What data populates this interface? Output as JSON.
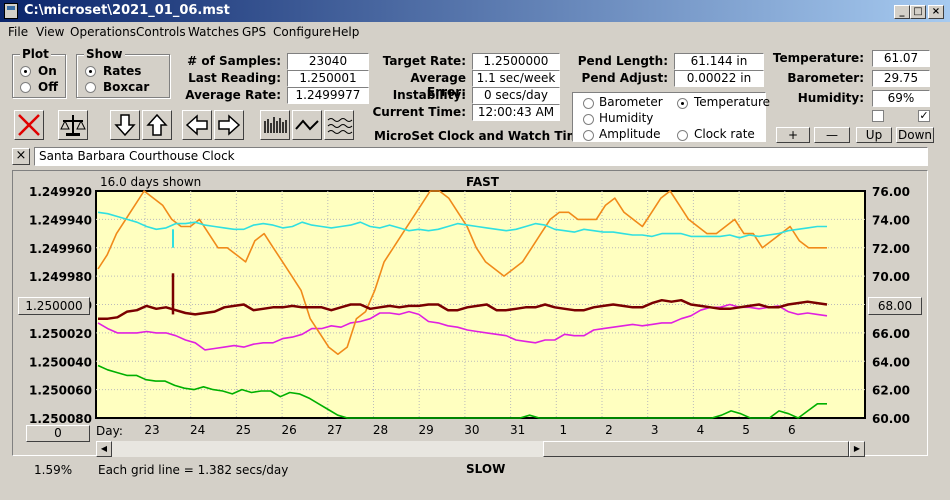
{
  "window": {
    "title": "C:\\microset\\2021_01_06.mst"
  },
  "menu": [
    "File",
    "View",
    "Operations",
    "Controls",
    "Watches",
    "GPS",
    "Configure",
    "Help"
  ],
  "plot_group": {
    "title": "Plot",
    "on": "On",
    "off": "Off"
  },
  "show_group": {
    "title": "Show",
    "rates": "Rates",
    "boxcar": "Boxcar"
  },
  "stats": {
    "samples_label": "# of Samples:",
    "samples": "23040",
    "last_label": "Last Reading:",
    "last": "1.250001",
    "avg_label": "Average Rate:",
    "avg": "1.2499977",
    "target_label": "Target Rate:",
    "target": "1.2500000",
    "error_label": "Average Error:",
    "error": "1.1 sec/week",
    "instab_label": "Instability:",
    "instab": "0 secs/day",
    "time_label": "Current Time:",
    "time": "12:00:43 AM",
    "pendlen_label": "Pend Length:",
    "pendlen": "61.144 in",
    "pendadj_label": "Pend Adjust:",
    "pendadj": "0.00022 in",
    "temp_label": "Temperature:",
    "temp": "61.07",
    "baro_label": "Barometer:",
    "baro": "29.75",
    "hum_label": "Humidity:",
    "hum": "69%"
  },
  "subtitle": "MicroSet Clock and Watch Timer",
  "radios": {
    "barometer": "Barometer",
    "temperature": "Temperature",
    "humidity": "Humidity",
    "amplitude": "Amplitude",
    "clockrate": "Clock rate"
  },
  "colors": {
    "barometer": "#f08a1a",
    "temperature": "#00b000",
    "humidity": "#e020e0",
    "amplitude": "#30e0e0",
    "clockrate": "#7a0000"
  },
  "buttons": {
    "plus": "+",
    "minus": "—",
    "up": "Up",
    "down": "Down",
    "close_x": "×"
  },
  "clock_name": "Santa Barbara Courthouse Clock",
  "graph": {
    "days_shown": "16.0 days shown",
    "fast": "FAST",
    "slow": "SLOW",
    "grid_note": "Each grid line = 1.382 secs/day",
    "left_button": "1.250000",
    "right_button": "68.00",
    "zero_button": "0",
    "day_label": "Day:",
    "percent": "1.59%"
  },
  "chart_data": {
    "type": "line",
    "y_left_ticks": [
      "1.249920",
      "1.249940",
      "1.249960",
      "1.249980",
      "1.250000",
      "1.250020",
      "1.250040",
      "1.250060",
      "1.250080"
    ],
    "y_right_ticks": [
      "76.00",
      "74.00",
      "72.00",
      "70.00",
      "68.00",
      "66.00",
      "64.00",
      "62.00",
      "60.00"
    ],
    "x_ticks": [
      "23",
      "24",
      "25",
      "26",
      "27",
      "28",
      "29",
      "30",
      "31",
      "1",
      "2",
      "3",
      "4",
      "5",
      "6"
    ],
    "ylim_right": [
      60,
      76
    ],
    "series": [
      {
        "name": "Barometer",
        "key": "barometer",
        "values": [
          70.5,
          71.5,
          73,
          74,
          75,
          76,
          75.5,
          75,
          74,
          73.5,
          73.5,
          74,
          73,
          72,
          72,
          71.5,
          71,
          72.5,
          73,
          72,
          71,
          70,
          69,
          67,
          66,
          65,
          64.5,
          65,
          67,
          67.5,
          69,
          71,
          72,
          73,
          74,
          75,
          76,
          76,
          75.5,
          74.5,
          73.5,
          72,
          71,
          70.5,
          70,
          70.5,
          71,
          72,
          73,
          74,
          74.5,
          74.5,
          74,
          74,
          74,
          75,
          75.5,
          74.5,
          74,
          73.5,
          74.5,
          75.5,
          76,
          75,
          74,
          73.5,
          73,
          73,
          73.5,
          74,
          73,
          73,
          72,
          72.5,
          73,
          73.5,
          72.5,
          72,
          72,
          72
        ]
      },
      {
        "name": "Temperature",
        "key": "temperature",
        "values": [
          63.7,
          63.4,
          63.2,
          63,
          63,
          62.7,
          62.6,
          62.6,
          62.3,
          62.1,
          62,
          62.2,
          62,
          61.9,
          61.7,
          62,
          61.8,
          61.9,
          61.9,
          61.5,
          61.8,
          61.7,
          61.4,
          61,
          60.6,
          60.2,
          60,
          60,
          60,
          60,
          60,
          60,
          60,
          60,
          60,
          60,
          60,
          60,
          60,
          60,
          60,
          60,
          60,
          60,
          60,
          60.2,
          60,
          60,
          60,
          60,
          60,
          60,
          60,
          60,
          60,
          60,
          60,
          60,
          60,
          60,
          60,
          60,
          60,
          60,
          60,
          60.2,
          60.5,
          60.3,
          60,
          60,
          60,
          60.5,
          60.3,
          60,
          60.5,
          61,
          61
        ]
      },
      {
        "name": "Humidity",
        "key": "humidity",
        "values": [
          66.7,
          66.3,
          66,
          66,
          66,
          66.1,
          66,
          66,
          65.8,
          65.5,
          65.3,
          64.8,
          64.9,
          65,
          65.1,
          65,
          65.2,
          65.3,
          65.3,
          65.6,
          65.7,
          65.9,
          66.3,
          66.3,
          66.5,
          66.4,
          66.7,
          66.8,
          67,
          67.4,
          67.4,
          67.3,
          67.5,
          67.3,
          66.8,
          66.7,
          66.5,
          66.4,
          66.2,
          66.1,
          66,
          65.9,
          65.8,
          65.5,
          65.4,
          65.3,
          65.5,
          65.5,
          65.9,
          65.8,
          65.8,
          66.2,
          66.3,
          66.4,
          66.5,
          66.6,
          66.5,
          66.6,
          66.7,
          66.7,
          67,
          67.2,
          67.6,
          67.8,
          67.8,
          68,
          67.8,
          67.8,
          67.7,
          67.8,
          67.9,
          67.5,
          67.3,
          67.4,
          67.3,
          67.2
        ]
      },
      {
        "name": "Amplitude",
        "key": "amplitude",
        "values": [
          74.5,
          74.4,
          74.2,
          74,
          73.8,
          73.5,
          73.3,
          73.4,
          73.7,
          73.7,
          73.8,
          73.6,
          73.5,
          73.4,
          73.3,
          73.3,
          73.6,
          73.7,
          73.6,
          73.4,
          73.5,
          73.8,
          73.6,
          73.5,
          73.4,
          73.5,
          73.6,
          73.8,
          73.5,
          73.4,
          73.6,
          73.4,
          73.2,
          73.3,
          73.2,
          73.3,
          73.5,
          73.7,
          73.6,
          73.5,
          73.4,
          73.3,
          73.2,
          73.3,
          73.5,
          73.7,
          73.6,
          73.3,
          73.2,
          73.1,
          73.3,
          73.2,
          73.1,
          73.1,
          73,
          72.9,
          72.9,
          72.8,
          73,
          73,
          73,
          72.8,
          72.8,
          72.8,
          72.8,
          72.9,
          72.7,
          72.9,
          72.8,
          72.9,
          73,
          73.2,
          73.3,
          73.4,
          73.5,
          73.5
        ]
      },
      {
        "name": "Clock rate",
        "key": "clockrate",
        "values": [
          67,
          67,
          67.1,
          67.5,
          67.6,
          67.9,
          67.7,
          67.8,
          67.6,
          67.4,
          67.3,
          67.4,
          67.5,
          67.8,
          67.9,
          68,
          67.6,
          67.7,
          67.8,
          67.8,
          67.9,
          67.8,
          67.8,
          67.8,
          67.6,
          67.8,
          68,
          68,
          67.7,
          67.8,
          67.9,
          67.8,
          67.9,
          67.9,
          68,
          68,
          67.6,
          67.6,
          67.8,
          67.9,
          68,
          67.6,
          67.6,
          67.7,
          67.8,
          67.8,
          68,
          67.8,
          67.7,
          67.6,
          67.6,
          67.8,
          67.9,
          68,
          67.9,
          67.8,
          67.8,
          68.1,
          68.3,
          68.2,
          68.3,
          68,
          67.9,
          67.8,
          67.7,
          67.7,
          67.8,
          67.9,
          68,
          67.8,
          67.8,
          68,
          68.1,
          68.2,
          68.1,
          68
        ]
      }
    ],
    "grid": true
  }
}
